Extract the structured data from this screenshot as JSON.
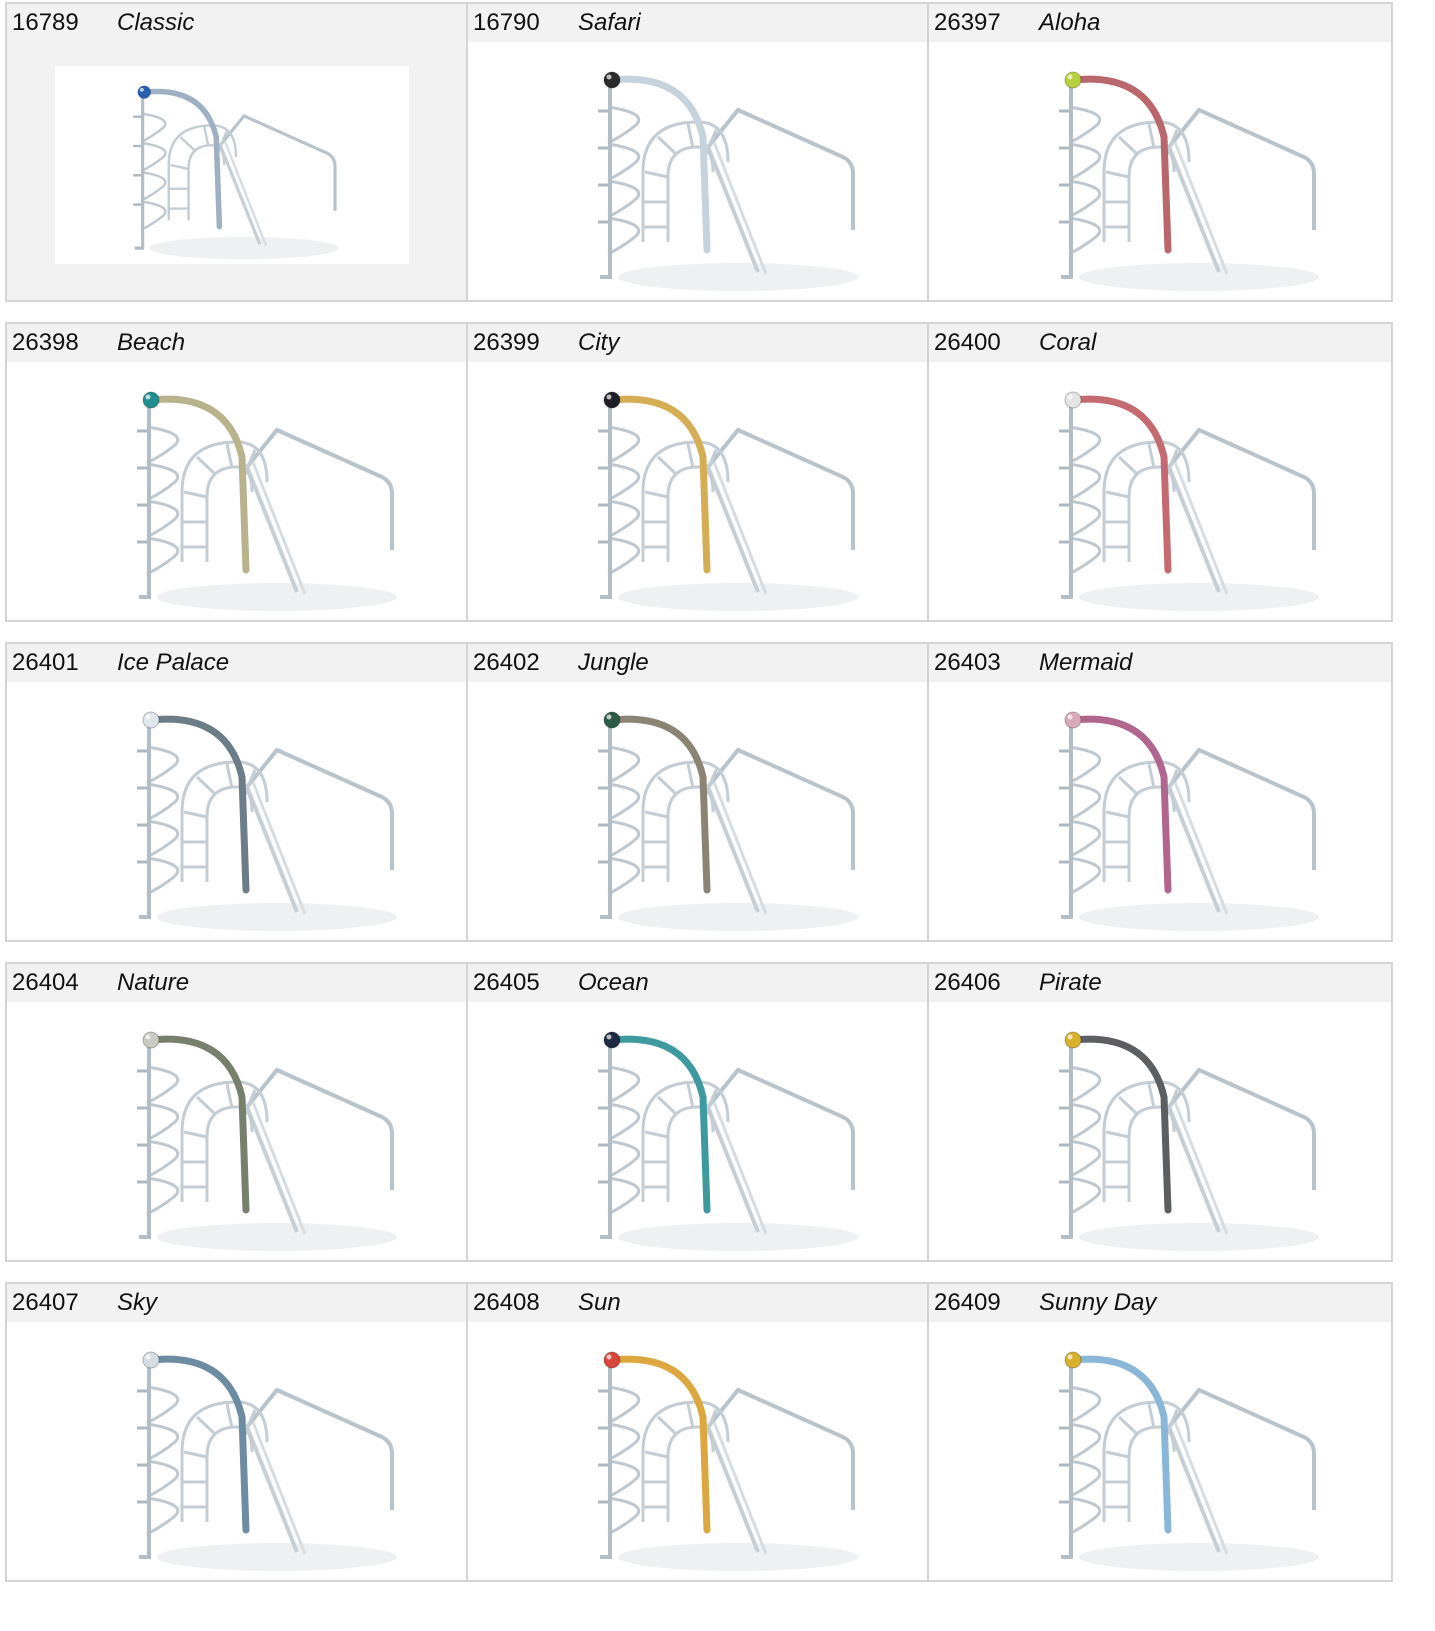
{
  "items": [
    {
      "code": "16789",
      "name": "Classic",
      "accent": "#9fb0c2",
      "ball": "#2a5fb0",
      "selected": true
    },
    {
      "code": "16790",
      "name": "Safari",
      "accent": "#c6d2dc",
      "ball": "#2a2a2a"
    },
    {
      "code": "26397",
      "name": "Aloha",
      "accent": "#b9666c",
      "ball": "#b8cf3e"
    },
    {
      "code": "26398",
      "name": "Beach",
      "accent": "#b8b28d",
      "ball": "#1f8f8f"
    },
    {
      "code": "26399",
      "name": "City",
      "accent": "#d5ad55",
      "ball": "#1f1f2a"
    },
    {
      "code": "26400",
      "name": "Coral",
      "accent": "#c46a70",
      "ball": "#e4e4e4"
    },
    {
      "code": "26401",
      "name": "Ice Palace",
      "accent": "#6c7d88",
      "ball": "#dfe6ec"
    },
    {
      "code": "26402",
      "name": "Jungle",
      "accent": "#8b8474",
      "ball": "#2d5a45"
    },
    {
      "code": "26403",
      "name": "Mermaid",
      "accent": "#b0668f",
      "ball": "#d9aab8"
    },
    {
      "code": "26404",
      "name": "Nature",
      "accent": "#76806c",
      "ball": "#c9cbc2"
    },
    {
      "code": "26405",
      "name": "Ocean",
      "accent": "#3f9aa0",
      "ball": "#1e2a40"
    },
    {
      "code": "26406",
      "name": "Pirate",
      "accent": "#5b5f62",
      "ball": "#d8b22c"
    },
    {
      "code": "26407",
      "name": "Sky",
      "accent": "#6d8ca2",
      "ball": "#d6dde2"
    },
    {
      "code": "26408",
      "name": "Sun",
      "accent": "#dca73e",
      "ball": "#d6463a"
    },
    {
      "code": "26409",
      "name": "Sunny Day",
      "accent": "#8ab7d8",
      "ball": "#d8b22c"
    }
  ]
}
